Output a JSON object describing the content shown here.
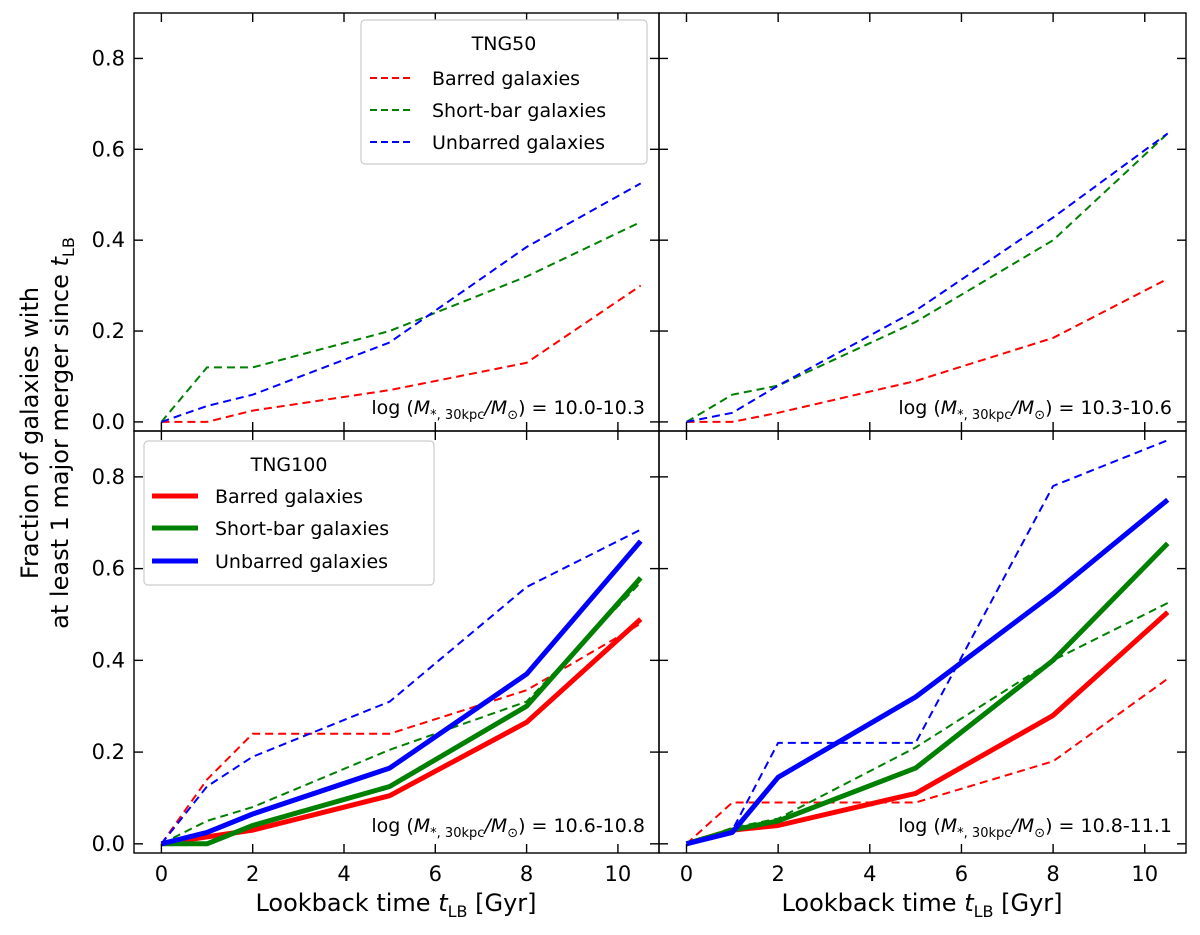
{
  "chart_data": {
    "type": "line",
    "ylabel_line1": "Fraction of galaxies with",
    "ylabel_line2_main": "at least 1 major merger since ",
    "ylabel_var": "t",
    "ylabel_sub": "LB",
    "xlabel_main": "Lookback time ",
    "xlabel_var": "t",
    "xlabel_sub": "LB",
    "xlabel_unit": " [Gyr]",
    "xlim": [
      -0.6,
      10.9
    ],
    "ylim": [
      -0.02,
      0.9
    ],
    "xticks": [
      "0",
      "2",
      "4",
      "6",
      "8",
      "10"
    ],
    "yticks": [
      "0.0",
      "0.2",
      "0.4",
      "0.6",
      "0.8"
    ],
    "colors": {
      "barred": "#ff0000",
      "shortbar": "#008000",
      "unbarred": "#0000ff"
    },
    "legend_tng50": {
      "title": "TNG50",
      "entries": [
        "Barred galaxies",
        "Short-bar galaxies",
        "Unbarred galaxies"
      ],
      "placement": "top-center"
    },
    "legend_tng100": {
      "title": "TNG100",
      "entries": [
        "Barred galaxies",
        "Short-bar galaxies",
        "Unbarred galaxies"
      ],
      "placement": "top-left"
    },
    "x": [
      0,
      1,
      2,
      5,
      8,
      10.5
    ],
    "panels": [
      {
        "annotation_pre": "log (",
        "annotation_mass": "M",
        "annotation_sub": "*, 30kpc",
        "annotation_slash": "/M",
        "annotation_sun": "⊙",
        "annotation_post": ") = 10.0-10.3",
        "tng50": {
          "barred": [
            0,
            0,
            0.025,
            0.07,
            0.13,
            0.3
          ],
          "shortbar": [
            0,
            0.12,
            0.12,
            0.2,
            0.32,
            0.44
          ],
          "unbarred": [
            0,
            0.035,
            0.06,
            0.175,
            0.385,
            0.525
          ]
        }
      },
      {
        "annotation_pre": "log (",
        "annotation_mass": "M",
        "annotation_sub": "*, 30kpc",
        "annotation_slash": "/M",
        "annotation_sun": "⊙",
        "annotation_post": ") = 10.3-10.6",
        "tng50": {
          "barred": [
            0,
            0,
            0.02,
            0.09,
            0.185,
            0.315
          ],
          "shortbar": [
            0,
            0.06,
            0.08,
            0.22,
            0.4,
            0.635
          ],
          "unbarred": [
            0,
            0.02,
            0.08,
            0.245,
            0.45,
            0.635
          ]
        }
      },
      {
        "annotation_pre": "log (",
        "annotation_mass": "M",
        "annotation_sub": "*, 30kpc",
        "annotation_slash": "/M",
        "annotation_sun": "⊙",
        "annotation_post": ") = 10.6-10.8",
        "tng50": {
          "barred": [
            0,
            0.14,
            0.24,
            0.24,
            0.335,
            0.48
          ],
          "shortbar": [
            0,
            0.05,
            0.08,
            0.205,
            0.31,
            0.57
          ],
          "unbarred": [
            0,
            0.125,
            0.19,
            0.31,
            0.56,
            0.685
          ]
        },
        "tng100": {
          "barred": [
            0,
            0.015,
            0.03,
            0.105,
            0.265,
            0.49
          ],
          "shortbar": [
            0,
            0,
            0.04,
            0.125,
            0.3,
            0.58
          ],
          "unbarred": [
            0,
            0.025,
            0.065,
            0.165,
            0.37,
            0.66
          ]
        }
      },
      {
        "annotation_pre": "log (",
        "annotation_mass": "M",
        "annotation_sub": "*, 30kpc",
        "annotation_slash": "/M",
        "annotation_sun": "⊙",
        "annotation_post": ") = 10.8-11.1",
        "tng50": {
          "barred": [
            0,
            0.09,
            0.09,
            0.09,
            0.18,
            0.36
          ],
          "shortbar": [
            0,
            0.035,
            0.055,
            0.21,
            0.4,
            0.525
          ],
          "unbarred": [
            0,
            0.03,
            0.22,
            0.22,
            0.78,
            0.88
          ]
        },
        "tng100": {
          "barred": [
            0,
            0.03,
            0.04,
            0.11,
            0.28,
            0.505
          ],
          "shortbar": [
            0,
            0.03,
            0.05,
            0.165,
            0.4,
            0.655
          ],
          "unbarred": [
            0,
            0.025,
            0.145,
            0.32,
            0.545,
            0.75
          ]
        }
      }
    ]
  }
}
